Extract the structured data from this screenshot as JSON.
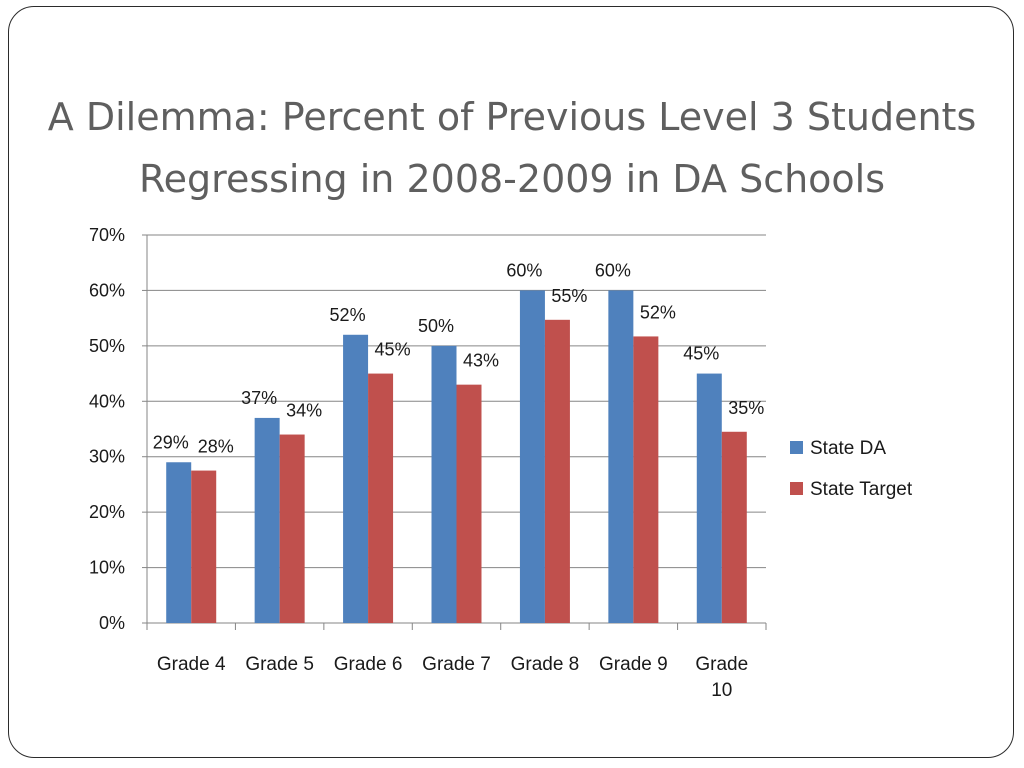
{
  "slide": {
    "title": "A Dilemma: Percent of Previous Level 3 Students\nRegressing in 2008-2009 in DA Schools"
  },
  "colors": {
    "state_da": "#4f81bd",
    "state_target": "#c0504d",
    "gridline": "#868686",
    "title_text": "#5f5f5f"
  },
  "chart_data": {
    "type": "bar",
    "categories": [
      [
        "Grade 4"
      ],
      [
        "Grade 5"
      ],
      [
        "Grade 6"
      ],
      [
        "Grade 7"
      ],
      [
        "Grade 8"
      ],
      [
        "Grade 9"
      ],
      [
        "Grade",
        "10"
      ]
    ],
    "series": [
      {
        "name": "State DA",
        "color": "#4f81bd",
        "values": [
          29,
          37,
          52,
          50,
          60,
          60,
          45
        ],
        "labels": [
          "29%",
          "37%",
          "52%",
          "50%",
          "60%",
          "60%",
          "45%"
        ]
      },
      {
        "name": "State Target",
        "color": "#c0504d",
        "values": [
          27.5,
          34,
          45,
          43,
          54.7,
          51.7,
          34.5
        ],
        "labels": [
          "28%",
          "34%",
          "45%",
          "43%",
          "55%",
          "52%",
          "35%"
        ]
      }
    ],
    "ylim": [
      0,
      70
    ],
    "yticks": [
      "0%",
      "10%",
      "20%",
      "30%",
      "40%",
      "50%",
      "60%",
      "70%"
    ],
    "grid": true,
    "legend_position": "right"
  }
}
